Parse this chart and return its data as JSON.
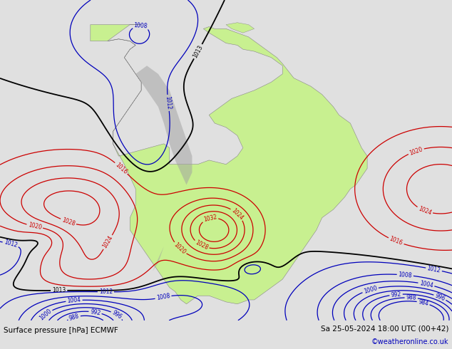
{
  "title_left": "Surface pressure [hPa] ECMWF",
  "title_right": "Sa 25-05-2024 18:00 UTC (00+42)",
  "watermark": "©weatheronline.co.uk",
  "bg_color": "#d2d2d2",
  "land_color": "#c8f090",
  "mountain_color": "#a0a0a0",
  "text_color_black": "#000000",
  "text_color_blue": "#0000bb",
  "text_color_red": "#cc0000",
  "contour_black": "#000000",
  "contour_blue": "#0000bb",
  "contour_red": "#cc0000",
  "footer_bg": "#e0e0e0",
  "figsize": [
    6.34,
    4.9
  ],
  "dpi": 100,
  "lon_min": -100,
  "lon_max": -20,
  "lat_min": -60,
  "lat_max": 18
}
